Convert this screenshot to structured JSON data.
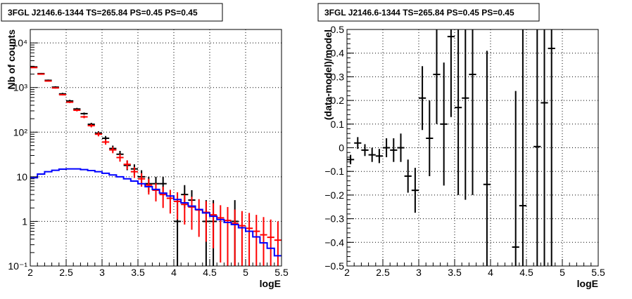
{
  "chart_data": [
    {
      "type": "line",
      "title": "3FGL J2146.6-1344 TS=265.84 PS=0.45 PS=0.45",
      "xlabel": "logE",
      "ylabel": "Nb of counts",
      "xlim": [
        2,
        5.5
      ],
      "ylim": [
        0.1,
        20000
      ],
      "yscale": "log",
      "grid": true,
      "xticks": [
        "2",
        "2.5",
        "3",
        "3.5",
        "4",
        "4.5",
        "5",
        "5.5"
      ],
      "yticks": [
        "10⁻¹",
        "1",
        "10",
        "10²",
        "10³",
        "10⁴"
      ],
      "series": [
        {
          "color": "#000000",
          "style": "points",
          "points": [
            {
              "x": 2.05,
              "y": 2900,
              "lo": 2800,
              "hi": 3000
            },
            {
              "x": 2.15,
              "y": 2050,
              "lo": 1980,
              "hi": 2120
            },
            {
              "x": 2.25,
              "y": 1450,
              "lo": 1390,
              "hi": 1510
            },
            {
              "x": 2.35,
              "y": 1020,
              "lo": 970,
              "hi": 1070
            },
            {
              "x": 2.45,
              "y": 720,
              "lo": 680,
              "hi": 760
            },
            {
              "x": 2.55,
              "y": 500,
              "lo": 470,
              "hi": 530
            },
            {
              "x": 2.65,
              "y": 330,
              "lo": 310,
              "hi": 350
            },
            {
              "x": 2.75,
              "y": 260,
              "lo": 245,
              "hi": 275
            },
            {
              "x": 2.85,
              "y": 150,
              "lo": 138,
              "hi": 162
            },
            {
              "x": 2.95,
              "y": 95,
              "lo": 86,
              "hi": 105
            },
            {
              "x": 3.05,
              "y": 73,
              "lo": 65,
              "hi": 82
            },
            {
              "x": 3.15,
              "y": 43,
              "lo": 37,
              "hi": 50
            },
            {
              "x": 3.25,
              "y": 32,
              "lo": 27,
              "hi": 38
            },
            {
              "x": 3.35,
              "y": 18,
              "lo": 14,
              "hi": 23
            },
            {
              "x": 3.45,
              "y": 15,
              "lo": 11,
              "hi": 19
            },
            {
              "x": 3.55,
              "y": 10,
              "lo": 7,
              "hi": 14
            },
            {
              "x": 3.65,
              "y": 7,
              "lo": 4.5,
              "hi": 10
            },
            {
              "x": 3.75,
              "y": 7,
              "lo": 4.5,
              "hi": 10
            },
            {
              "x": 3.85,
              "y": 7,
              "lo": 4.5,
              "hi": 10
            },
            {
              "x": 4.05,
              "y": 1,
              "lo": 0.1,
              "hi": 3
            },
            {
              "x": 4.15,
              "y": 4,
              "lo": 2,
              "hi": 6.5
            },
            {
              "x": 4.25,
              "y": 3,
              "lo": 1.5,
              "hi": 5
            },
            {
              "x": 4.45,
              "y": 1,
              "lo": 0.1,
              "hi": 3
            },
            {
              "x": 4.55,
              "y": 1,
              "lo": 0.1,
              "hi": 3
            },
            {
              "x": 4.85,
              "y": 1,
              "lo": 0.1,
              "hi": 3
            }
          ]
        },
        {
          "color": "#ff0000",
          "style": "points",
          "points": [
            {
              "x": 2.05,
              "y": 2800,
              "lo": 2747,
              "hi": 2853
            },
            {
              "x": 2.15,
              "y": 2000,
              "lo": 1955,
              "hi": 2045
            },
            {
              "x": 2.25,
              "y": 1400,
              "lo": 1363,
              "hi": 1437
            },
            {
              "x": 2.35,
              "y": 980,
              "lo": 949,
              "hi": 1011
            },
            {
              "x": 2.45,
              "y": 690,
              "lo": 664,
              "hi": 716
            },
            {
              "x": 2.55,
              "y": 470,
              "lo": 448,
              "hi": 492
            },
            {
              "x": 2.65,
              "y": 310,
              "lo": 292,
              "hi": 328
            },
            {
              "x": 2.75,
              "y": 220,
              "lo": 205,
              "hi": 235
            },
            {
              "x": 2.85,
              "y": 140,
              "lo": 128,
              "hi": 152
            },
            {
              "x": 2.95,
              "y": 90,
              "lo": 80.5,
              "hi": 99.5
            },
            {
              "x": 3.05,
              "y": 60,
              "lo": 52.3,
              "hi": 67.7
            },
            {
              "x": 3.15,
              "y": 40,
              "lo": 33.7,
              "hi": 46.3
            },
            {
              "x": 3.25,
              "y": 27,
              "lo": 21.8,
              "hi": 32.2
            },
            {
              "x": 3.35,
              "y": 19,
              "lo": 14.6,
              "hi": 23.4
            },
            {
              "x": 3.45,
              "y": 13,
              "lo": 9.4,
              "hi": 16.6
            },
            {
              "x": 3.55,
              "y": 9,
              "lo": 6,
              "hi": 12
            },
            {
              "x": 3.65,
              "y": 6.5,
              "lo": 4,
              "hi": 9
            },
            {
              "x": 3.75,
              "y": 5,
              "lo": 2.8,
              "hi": 7.2
            },
            {
              "x": 3.85,
              "y": 4,
              "lo": 2,
              "hi": 6
            },
            {
              "x": 3.95,
              "y": 3.3,
              "lo": 1.5,
              "hi": 5.1
            },
            {
              "x": 4.05,
              "y": 2.8,
              "lo": 1.1,
              "hi": 4.5
            },
            {
              "x": 4.15,
              "y": 2.4,
              "lo": 0.85,
              "hi": 3.95
            },
            {
              "x": 4.25,
              "y": 2.1,
              "lo": 0.65,
              "hi": 3.55
            },
            {
              "x": 4.35,
              "y": 1.8,
              "lo": 0.45,
              "hi": 3.15
            },
            {
              "x": 4.45,
              "y": 1.6,
              "lo": 0.35,
              "hi": 2.85
            },
            {
              "x": 4.55,
              "y": 1.4,
              "lo": 0.25,
              "hi": 2.55
            },
            {
              "x": 4.65,
              "y": 1.2,
              "lo": 0.12,
              "hi": 2.3
            },
            {
              "x": 4.75,
              "y": 1.05,
              "lo": 0.1,
              "hi": 2.1
            },
            {
              "x": 4.85,
              "y": 0.9,
              "lo": 0.1,
              "hi": 1.85
            },
            {
              "x": 4.95,
              "y": 0.8,
              "lo": 0.1,
              "hi": 1.7
            },
            {
              "x": 5.05,
              "y": 0.7,
              "lo": 0.1,
              "hi": 1.55
            },
            {
              "x": 5.15,
              "y": 0.6,
              "lo": 0.1,
              "hi": 1.4
            },
            {
              "x": 5.25,
              "y": 0.5,
              "lo": 0.1,
              "hi": 1.25
            },
            {
              "x": 5.35,
              "y": 0.44,
              "lo": 0.1,
              "hi": 1.1
            },
            {
              "x": 5.45,
              "y": 0.38,
              "lo": 0.1,
              "hi": 1.0
            }
          ]
        },
        {
          "color": "#0000ff",
          "style": "step",
          "bin_width": 0.1,
          "points": [
            {
              "x": 2.05,
              "y": 9.5
            },
            {
              "x": 2.15,
              "y": 11.5
            },
            {
              "x": 2.25,
              "y": 13
            },
            {
              "x": 2.35,
              "y": 14
            },
            {
              "x": 2.45,
              "y": 14.8
            },
            {
              "x": 2.55,
              "y": 15
            },
            {
              "x": 2.65,
              "y": 15
            },
            {
              "x": 2.75,
              "y": 14.5
            },
            {
              "x": 2.85,
              "y": 13.8
            },
            {
              "x": 2.95,
              "y": 13
            },
            {
              "x": 3.05,
              "y": 12
            },
            {
              "x": 3.15,
              "y": 11
            },
            {
              "x": 3.25,
              "y": 10
            },
            {
              "x": 3.35,
              "y": 9
            },
            {
              "x": 3.45,
              "y": 8
            },
            {
              "x": 3.55,
              "y": 7
            },
            {
              "x": 3.65,
              "y": 6
            },
            {
              "x": 3.75,
              "y": 5.2
            },
            {
              "x": 3.85,
              "y": 4.3
            },
            {
              "x": 3.95,
              "y": 3.7
            },
            {
              "x": 4.05,
              "y": 3.1
            },
            {
              "x": 4.15,
              "y": 2.6
            },
            {
              "x": 4.25,
              "y": 2.2
            },
            {
              "x": 4.35,
              "y": 1.85
            },
            {
              "x": 4.45,
              "y": 1.55
            },
            {
              "x": 4.55,
              "y": 1.3
            },
            {
              "x": 4.65,
              "y": 1.1
            },
            {
              "x": 4.75,
              "y": 0.95
            },
            {
              "x": 4.85,
              "y": 0.85
            },
            {
              "x": 4.95,
              "y": 0.72
            },
            {
              "x": 5.05,
              "y": 0.6
            },
            {
              "x": 5.15,
              "y": 0.45
            },
            {
              "x": 5.25,
              "y": 0.33
            },
            {
              "x": 5.35,
              "y": 0.25
            },
            {
              "x": 5.45,
              "y": 0.17
            }
          ]
        }
      ]
    },
    {
      "type": "scatter",
      "title": "3FGL J2146.6-1344 TS=265.84 PS=0.45 PS=0.45",
      "xlabel": "logE",
      "ylabel": "(data-model)/model",
      "xlim": [
        2,
        5.5
      ],
      "ylim": [
        -0.5,
        0.5
      ],
      "yscale": "linear",
      "grid": true,
      "xticks": [
        "2",
        "2.5",
        "3",
        "3.5",
        "4",
        "4.5",
        "5",
        "5.5"
      ],
      "yticks": [
        "−0.5",
        "−0.4",
        "−0.3",
        "−0.2",
        "−0.1",
        "0",
        "0.1",
        "0.2",
        "0.3",
        "0.4",
        "0.5"
      ],
      "series": [
        {
          "color": "#000000",
          "style": "points",
          "points": [
            {
              "x": 2.05,
              "y": -0.05,
              "lo": -0.07,
              "hi": -0.03
            },
            {
              "x": 2.15,
              "y": 0.02,
              "lo": -0.005,
              "hi": 0.045
            },
            {
              "x": 2.25,
              "y": -0.01,
              "lo": -0.035,
              "hi": 0.015
            },
            {
              "x": 2.35,
              "y": -0.03,
              "lo": -0.06,
              "hi": 0.0
            },
            {
              "x": 2.45,
              "y": -0.035,
              "lo": -0.065,
              "hi": -0.005
            },
            {
              "x": 2.55,
              "y": 0.0,
              "lo": -0.04,
              "hi": 0.04
            },
            {
              "x": 2.65,
              "y": -0.01,
              "lo": -0.06,
              "hi": 0.04
            },
            {
              "x": 2.75,
              "y": 0.0,
              "lo": -0.06,
              "hi": 0.06
            },
            {
              "x": 2.85,
              "y": -0.12,
              "lo": -0.19,
              "hi": -0.05
            },
            {
              "x": 2.95,
              "y": -0.18,
              "lo": -0.275,
              "hi": -0.085
            },
            {
              "x": 3.05,
              "y": 0.21,
              "lo": 0.075,
              "hi": 0.345
            },
            {
              "x": 3.15,
              "y": 0.04,
              "lo": -0.12,
              "hi": 0.2
            },
            {
              "x": 3.25,
              "y": 0.31,
              "lo": 0.1,
              "hi": 0.52
            },
            {
              "x": 3.35,
              "y": 0.1,
              "lo": -0.16,
              "hi": 0.36
            },
            {
              "x": 3.45,
              "y": 0.47,
              "lo": 0.13,
              "hi": 0.81
            },
            {
              "x": 3.55,
              "y": 0.17,
              "lo": -0.2,
              "hi": 0.54
            },
            {
              "x": 3.65,
              "y": 0.21,
              "lo": -0.22,
              "hi": 0.64
            },
            {
              "x": 3.75,
              "y": 0.31,
              "lo": -0.2,
              "hi": 0.82
            },
            {
              "x": 3.95,
              "y": -0.155,
              "lo": -0.72,
              "hi": 0.41
            },
            {
              "x": 4.35,
              "y": -0.42,
              "lo": -1.0,
              "hi": 0.24
            },
            {
              "x": 4.45,
              "y": -0.245,
              "lo": -1.0,
              "hi": 0.53
            },
            {
              "x": 4.65,
              "y": 0.005,
              "lo": -0.8,
              "hi": 0.81
            },
            {
              "x": 4.75,
              "y": 0.19,
              "lo": -0.7,
              "hi": 1.08
            },
            {
              "x": 4.85,
              "y": 0.42,
              "lo": -0.6,
              "hi": 1.44
            }
          ]
        }
      ]
    }
  ]
}
